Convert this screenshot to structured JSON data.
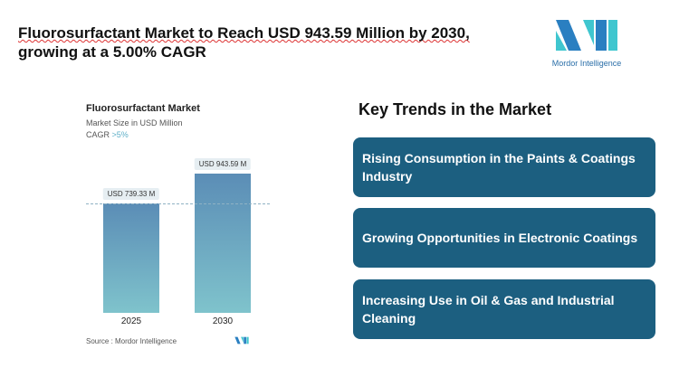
{
  "header": {
    "title_line1": "Fluorosurfactant Market to Reach USD 943.59 Million by 2030,",
    "title_line2": "growing at a 5.00% CAGR"
  },
  "logo": {
    "text": "Mordor Intelligence",
    "colors": [
      "#2a7fc1",
      "#3fc6cf"
    ]
  },
  "chart_data": {
    "type": "bar",
    "title": "Fluorosurfactant Market",
    "subtitle": "Market Size in USD Million",
    "cagr_label": "CAGR",
    "cagr_value": ">5%",
    "categories": [
      "2025",
      "2030"
    ],
    "values": [
      739.33,
      943.59
    ],
    "data_labels": [
      "USD 739.33 M",
      "USD 943.59 M"
    ],
    "ylim": [
      0,
      1000
    ],
    "source": "Source :  Mordor Intelligence",
    "bar_gradient": [
      "#5b8db6",
      "#7fc3cc"
    ]
  },
  "trends": {
    "title": "Key Trends in the Market",
    "items": [
      "Rising Consumption in the Paints & Coatings Industry",
      "Growing Opportunities in Electronic Coatings",
      "Increasing Use in Oil & Gas and Industrial Cleaning"
    ],
    "card_color": "#1c5f80"
  }
}
